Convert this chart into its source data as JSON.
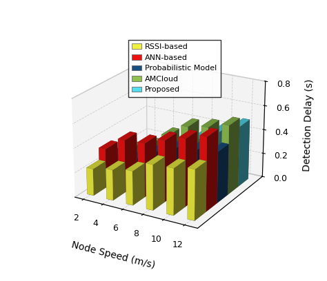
{
  "categories": [
    2,
    4,
    6,
    8,
    10,
    12
  ],
  "series": {
    "RSSI-based": [
      0.22,
      0.25,
      0.28,
      0.37,
      0.38,
      0.41
    ],
    "ANN-based": [
      0.32,
      0.43,
      0.44,
      0.5,
      0.55,
      0.6
    ],
    "Probabilistic Model": [
      0.22,
      0.22,
      0.31,
      0.38,
      0.4,
      0.42
    ],
    "AMCloud": [
      0.19,
      0.26,
      0.38,
      0.49,
      0.52,
      0.57
    ],
    "Proposed": [
      0.09,
      0.17,
      0.24,
      0.33,
      0.42,
      0.5
    ]
  },
  "colors": {
    "RSSI-based": "#f0f040",
    "ANN-based": "#ee1111",
    "Probabilistic Model": "#1a5080",
    "AMCloud": "#90c050",
    "Proposed": "#55ddee"
  },
  "xlabel": "Node Speed (m/s)",
  "ylabel": "Detection Delay (s)",
  "ylim": [
    0,
    0.8
  ],
  "yticks": [
    0,
    0.2,
    0.4,
    0.6,
    0.8
  ],
  "legend_order": [
    "RSSI-based",
    "ANN-based",
    "Probabilistic Model",
    "AMCloud",
    "Proposed"
  ],
  "figsize": [
    4.74,
    4.08
  ],
  "dpi": 100
}
